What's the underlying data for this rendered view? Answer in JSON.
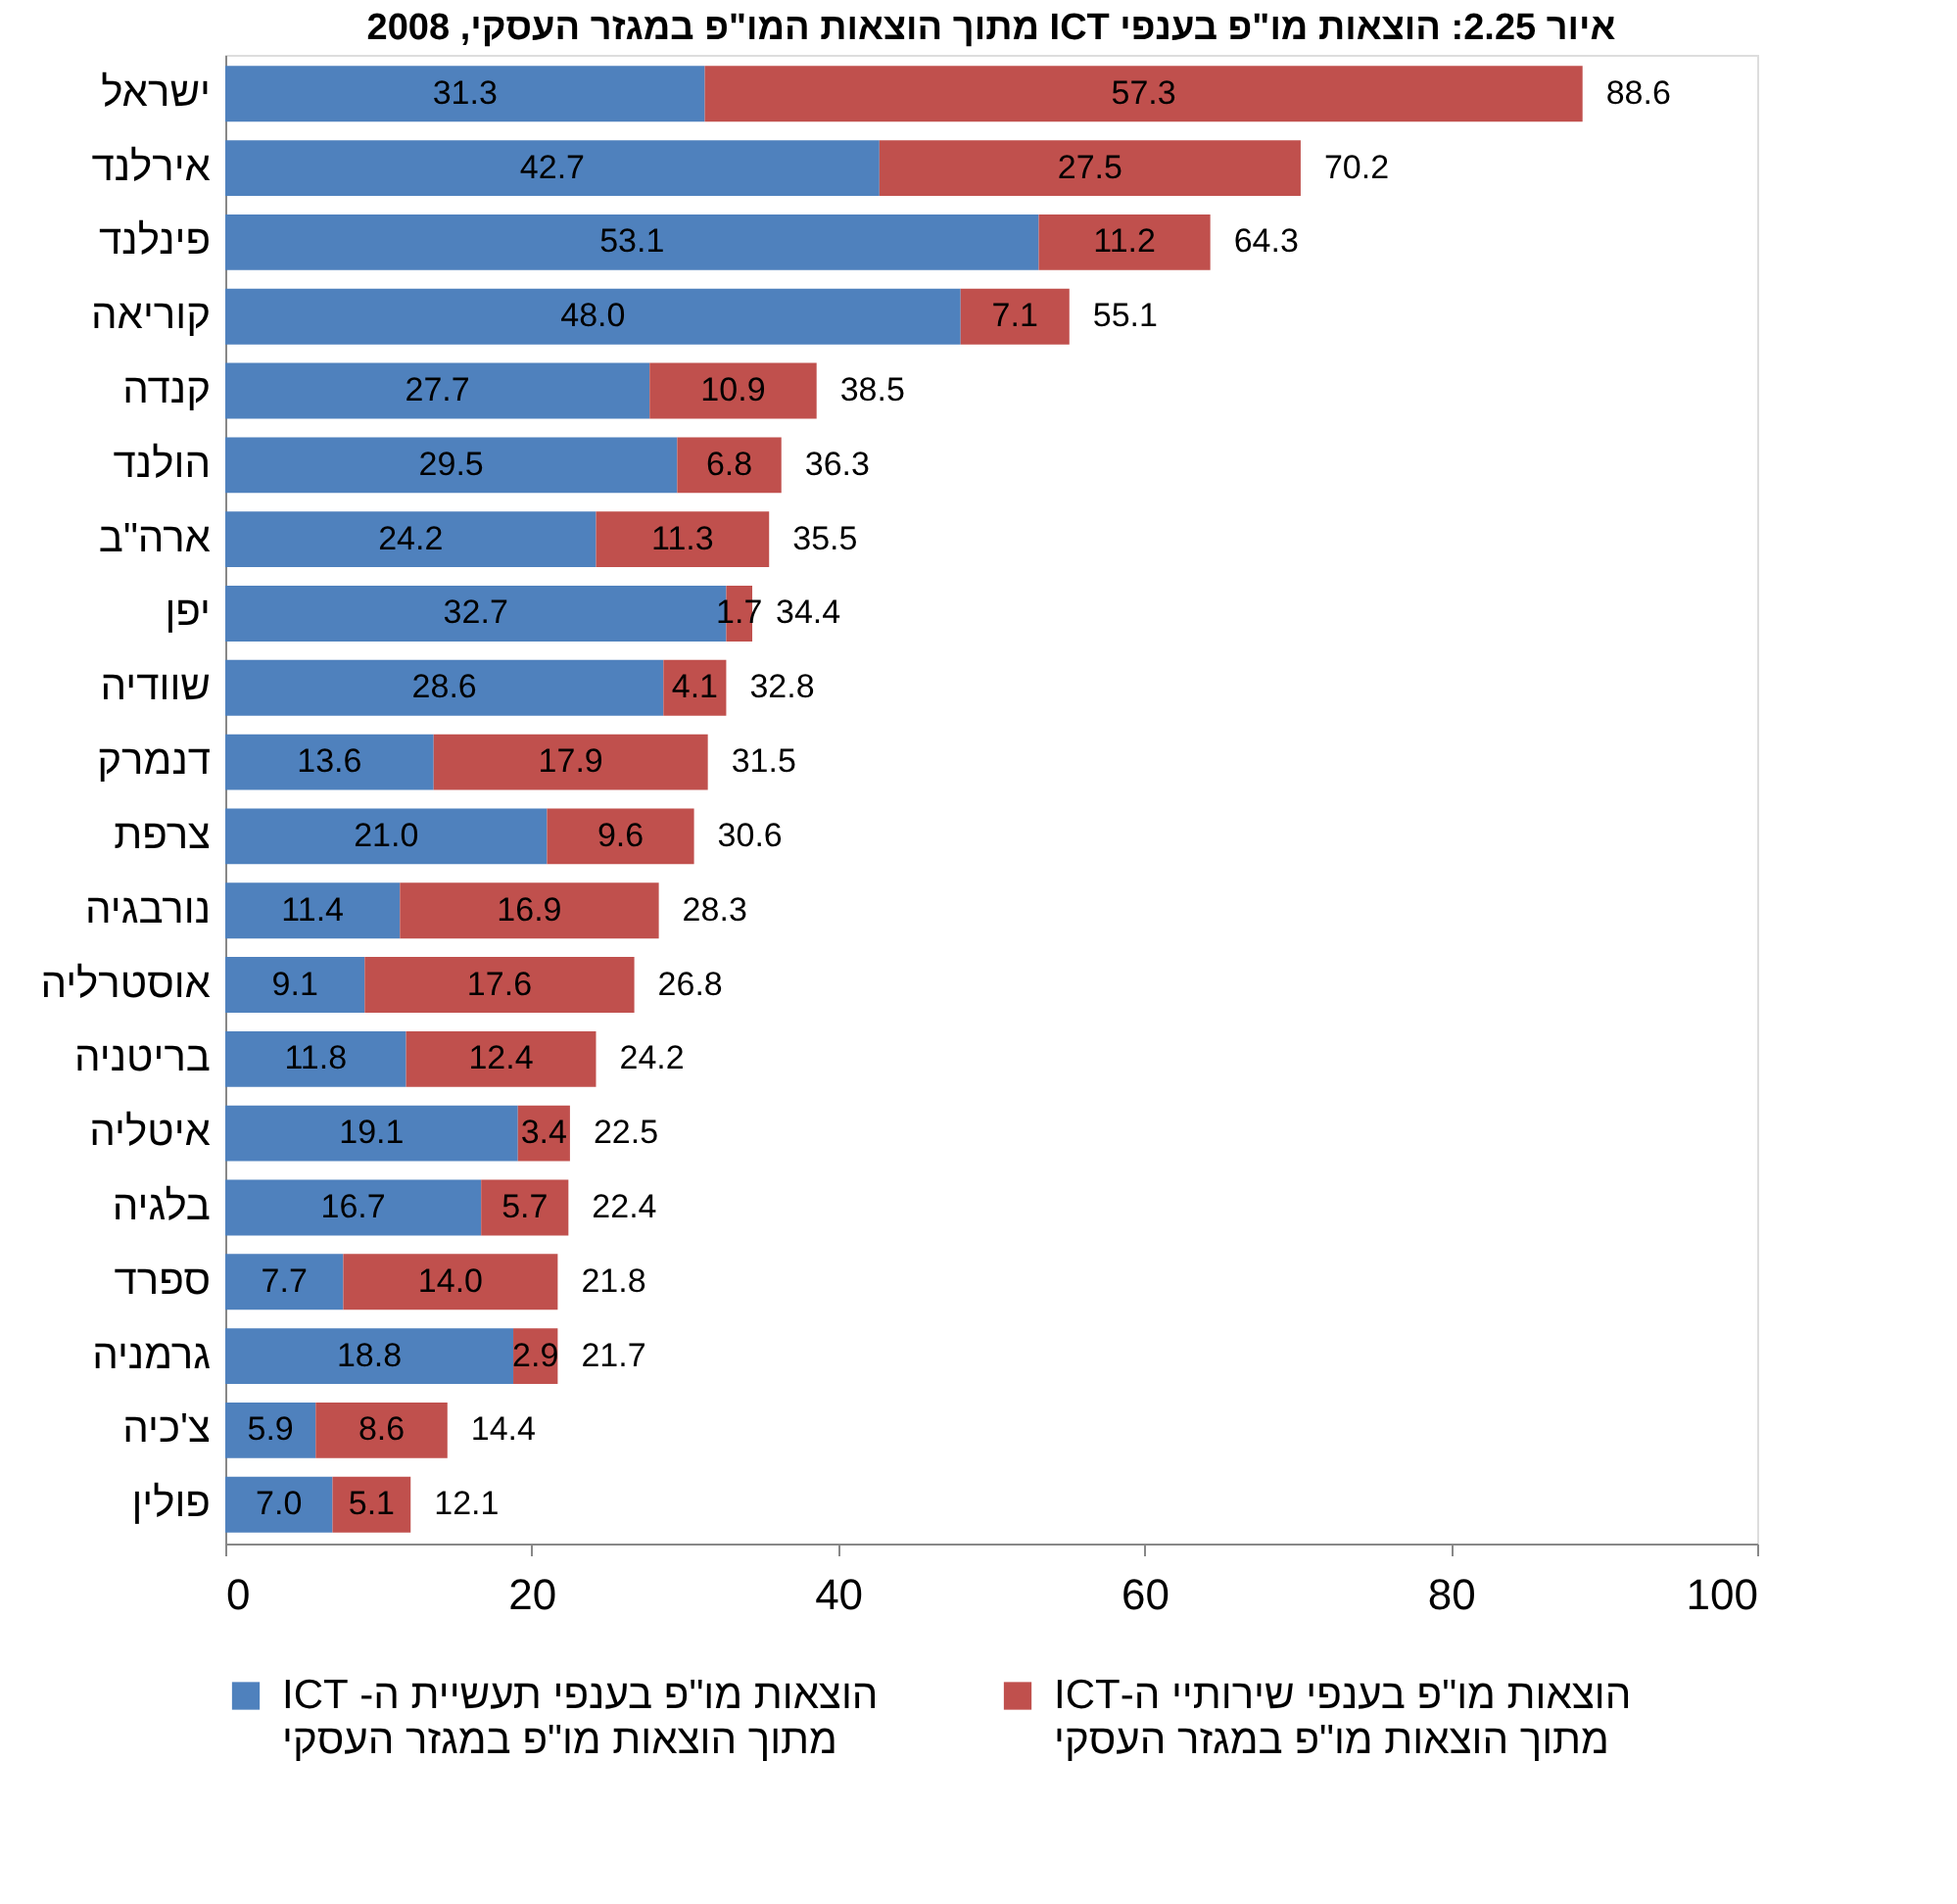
{
  "chart_data": {
    "type": "bar",
    "orientation": "horizontal",
    "stacked": true,
    "title": "איור 2.25: הוצאות מו\"פ בענפי ICT מתוך הוצאות המו\"פ במגזר העסקי, 2008",
    "categories": [
      "ישראל",
      "אירלנד",
      "פינלנד",
      "קוריאה",
      "קנדה",
      "הולנד",
      "ארה\"ב",
      "יפן",
      "שוודיה",
      "דנמרק",
      "צרפת",
      "נורבגיה",
      "אוסטרליה",
      "בריטניה",
      "איטליה",
      "בלגיה",
      "ספרד",
      "גרמניה",
      "צ'כיה",
      "פולין"
    ],
    "series": [
      {
        "name": "הוצאות מו\"פ בענפי תעשיית ה- ICT\nמתוך הוצאות מו\"פ במגזר העסקי",
        "color": "#4f81bd",
        "values": [
          31.3,
          42.7,
          53.1,
          48.0,
          27.7,
          29.5,
          24.2,
          32.7,
          28.6,
          13.6,
          21.0,
          11.4,
          9.1,
          11.8,
          19.1,
          16.7,
          7.7,
          18.8,
          5.9,
          7.0
        ],
        "value_labels": [
          "31.3",
          "42.7",
          "53.1",
          "48.0",
          "27.7",
          "29.5",
          "24.2",
          "32.7",
          "28.6",
          "13.6",
          "21.0",
          "11.4",
          "9.1",
          "11.8",
          "19.1",
          "16.7",
          "7.7",
          "18.8",
          "5.9",
          "7.0"
        ]
      },
      {
        "name": "הוצאות מו\"פ בענפי שירותיי ה-ICT\nמתוך הוצאות מו\"פ במגזר העסקי",
        "color": "#c0504d",
        "values": [
          57.3,
          27.5,
          11.2,
          7.1,
          10.9,
          6.8,
          11.3,
          1.7,
          4.1,
          17.9,
          9.6,
          16.9,
          17.6,
          12.4,
          3.4,
          5.7,
          14.0,
          2.9,
          8.6,
          5.1
        ],
        "value_labels": [
          "57.3",
          "27.5",
          "11.2",
          "7.1",
          "10.9",
          "6.8",
          "11.3",
          "1.7",
          "4.1",
          "17.9",
          "9.6",
          "16.9",
          "17.6",
          "12.4",
          "3.4",
          "5.7",
          "14.0",
          "2.9",
          "8.6",
          "5.1"
        ]
      }
    ],
    "totals": [
      "88.6",
      "70.2",
      "64.3",
      "55.1",
      "38.5",
      "36.3",
      "35.5",
      "34.4",
      "32.8",
      "31.5",
      "30.6",
      "28.3",
      "26.8",
      "24.2",
      "22.5",
      "22.4",
      "21.8",
      "21.7",
      "14.4",
      "12.1"
    ],
    "xlim": [
      0,
      100
    ],
    "xticks": [
      0,
      20,
      40,
      60,
      80,
      100
    ],
    "grid": false,
    "legend": "bottom"
  }
}
